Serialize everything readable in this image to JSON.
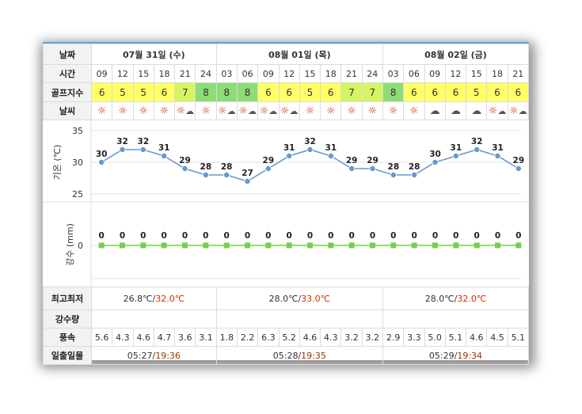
{
  "labels": {
    "date": "날짜",
    "time": "시간",
    "golf_index": "골프지수",
    "weather": "날씨",
    "temp_axis": "기온 (℃)",
    "rain_axis": "강수 (mm)",
    "minmax": "최고최저",
    "rain_amount": "강수량",
    "wind": "풍속",
    "sunrise_sunset": "일출일몰"
  },
  "days": [
    {
      "date": "07월 31일 (수)",
      "min": "26.8℃",
      "sep": "/",
      "max": "32.0℃",
      "sunrise": "05:27",
      "sunset": "19:36"
    },
    {
      "date": "08월 01일 (목)",
      "min": "28.0℃",
      "sep": "/",
      "max": "33.0℃",
      "sunrise": "05:28",
      "sunset": "19:35"
    },
    {
      "date": "08월 02일 (금)",
      "min": "28.0℃",
      "sep": "/",
      "max": "32.0℃",
      "sunrise": "05:29",
      "sunset": "19:34"
    }
  ],
  "hours": [
    "09",
    "12",
    "15",
    "18",
    "21",
    "24",
    "03",
    "06",
    "09",
    "12",
    "15",
    "18",
    "21",
    "24",
    "03",
    "06",
    "09",
    "12",
    "15",
    "18",
    "21"
  ],
  "golf_index": [
    "6",
    "5",
    "5",
    "6",
    "7",
    "8",
    "8",
    "8",
    "6",
    "6",
    "5",
    "6",
    "7",
    "7",
    "8",
    "6",
    "6",
    "6",
    "5",
    "6",
    "6"
  ],
  "weather_icons": [
    "sun-icon",
    "sun-icon",
    "sun-icon",
    "sun-icon",
    "sun-cloud-icon",
    "sun-icon",
    "sun-cloud-icon",
    "sun-cloud-icon",
    "sun-cloud-icon",
    "sun-cloud-icon",
    "sun-icon",
    "sun-icon",
    "sun-icon",
    "sun-icon",
    "sun-icon",
    "sun-icon",
    "cloud-icon",
    "cloud-icon",
    "cloud-icon",
    "sun-cloud-icon",
    "sun-cloud-icon"
  ],
  "wind": [
    "5.6",
    "4.3",
    "4.6",
    "4.7",
    "3.6",
    "3.1",
    "1.8",
    "2.2",
    "6.3",
    "5.2",
    "4.6",
    "4.3",
    "3.2",
    "3.2",
    "2.9",
    "3.3",
    "5.0",
    "5.1",
    "4.6",
    "4.5",
    "5.1"
  ],
  "colors": {
    "line": "#6699cc",
    "point": "#6699cc",
    "rain_line": "#99dd66",
    "rain_point": "#77cc55",
    "golf_yellow": "#ffff66",
    "golf_lime": "#d6f562",
    "golf_green": "#8cdc77",
    "max_temp": "#cc3300"
  },
  "chart_data": [
    {
      "type": "line",
      "ylabel": "기온 (℃)",
      "ylim": [
        25,
        35
      ],
      "yticks": [
        "25",
        "30",
        "35"
      ],
      "x": [
        "09",
        "12",
        "15",
        "18",
        "21",
        "24",
        "03",
        "06",
        "09",
        "12",
        "15",
        "18",
        "21",
        "24",
        "03",
        "06",
        "09",
        "12",
        "15",
        "18",
        "21"
      ],
      "values": [
        30,
        32,
        32,
        31,
        29,
        28,
        28,
        27,
        29,
        31,
        32,
        31,
        29,
        29,
        28,
        28,
        30,
        31,
        32,
        31,
        29
      ],
      "data_labels": [
        "30",
        "32",
        "32",
        "31",
        "29",
        "28",
        "28",
        "27",
        "29",
        "31",
        "32",
        "31",
        "29",
        "29",
        "28",
        "28",
        "30",
        "31",
        "32",
        "31",
        "29"
      ],
      "grid": true
    },
    {
      "type": "line",
      "ylabel": "강수 (mm)",
      "yticks": [
        "0"
      ],
      "x": [
        "09",
        "12",
        "15",
        "18",
        "21",
        "24",
        "03",
        "06",
        "09",
        "12",
        "15",
        "18",
        "21",
        "24",
        "03",
        "06",
        "09",
        "12",
        "15",
        "18",
        "21"
      ],
      "values": [
        0,
        0,
        0,
        0,
        0,
        0,
        0,
        0,
        0,
        0,
        0,
        0,
        0,
        0,
        0,
        0,
        0,
        0,
        0,
        0,
        0
      ],
      "data_labels": [
        "0",
        "0",
        "0",
        "0",
        "0",
        "0",
        "0",
        "0",
        "0",
        "0",
        "0",
        "0",
        "0",
        "0",
        "0",
        "0",
        "0",
        "0",
        "0",
        "0",
        "0"
      ],
      "grid": true
    }
  ]
}
